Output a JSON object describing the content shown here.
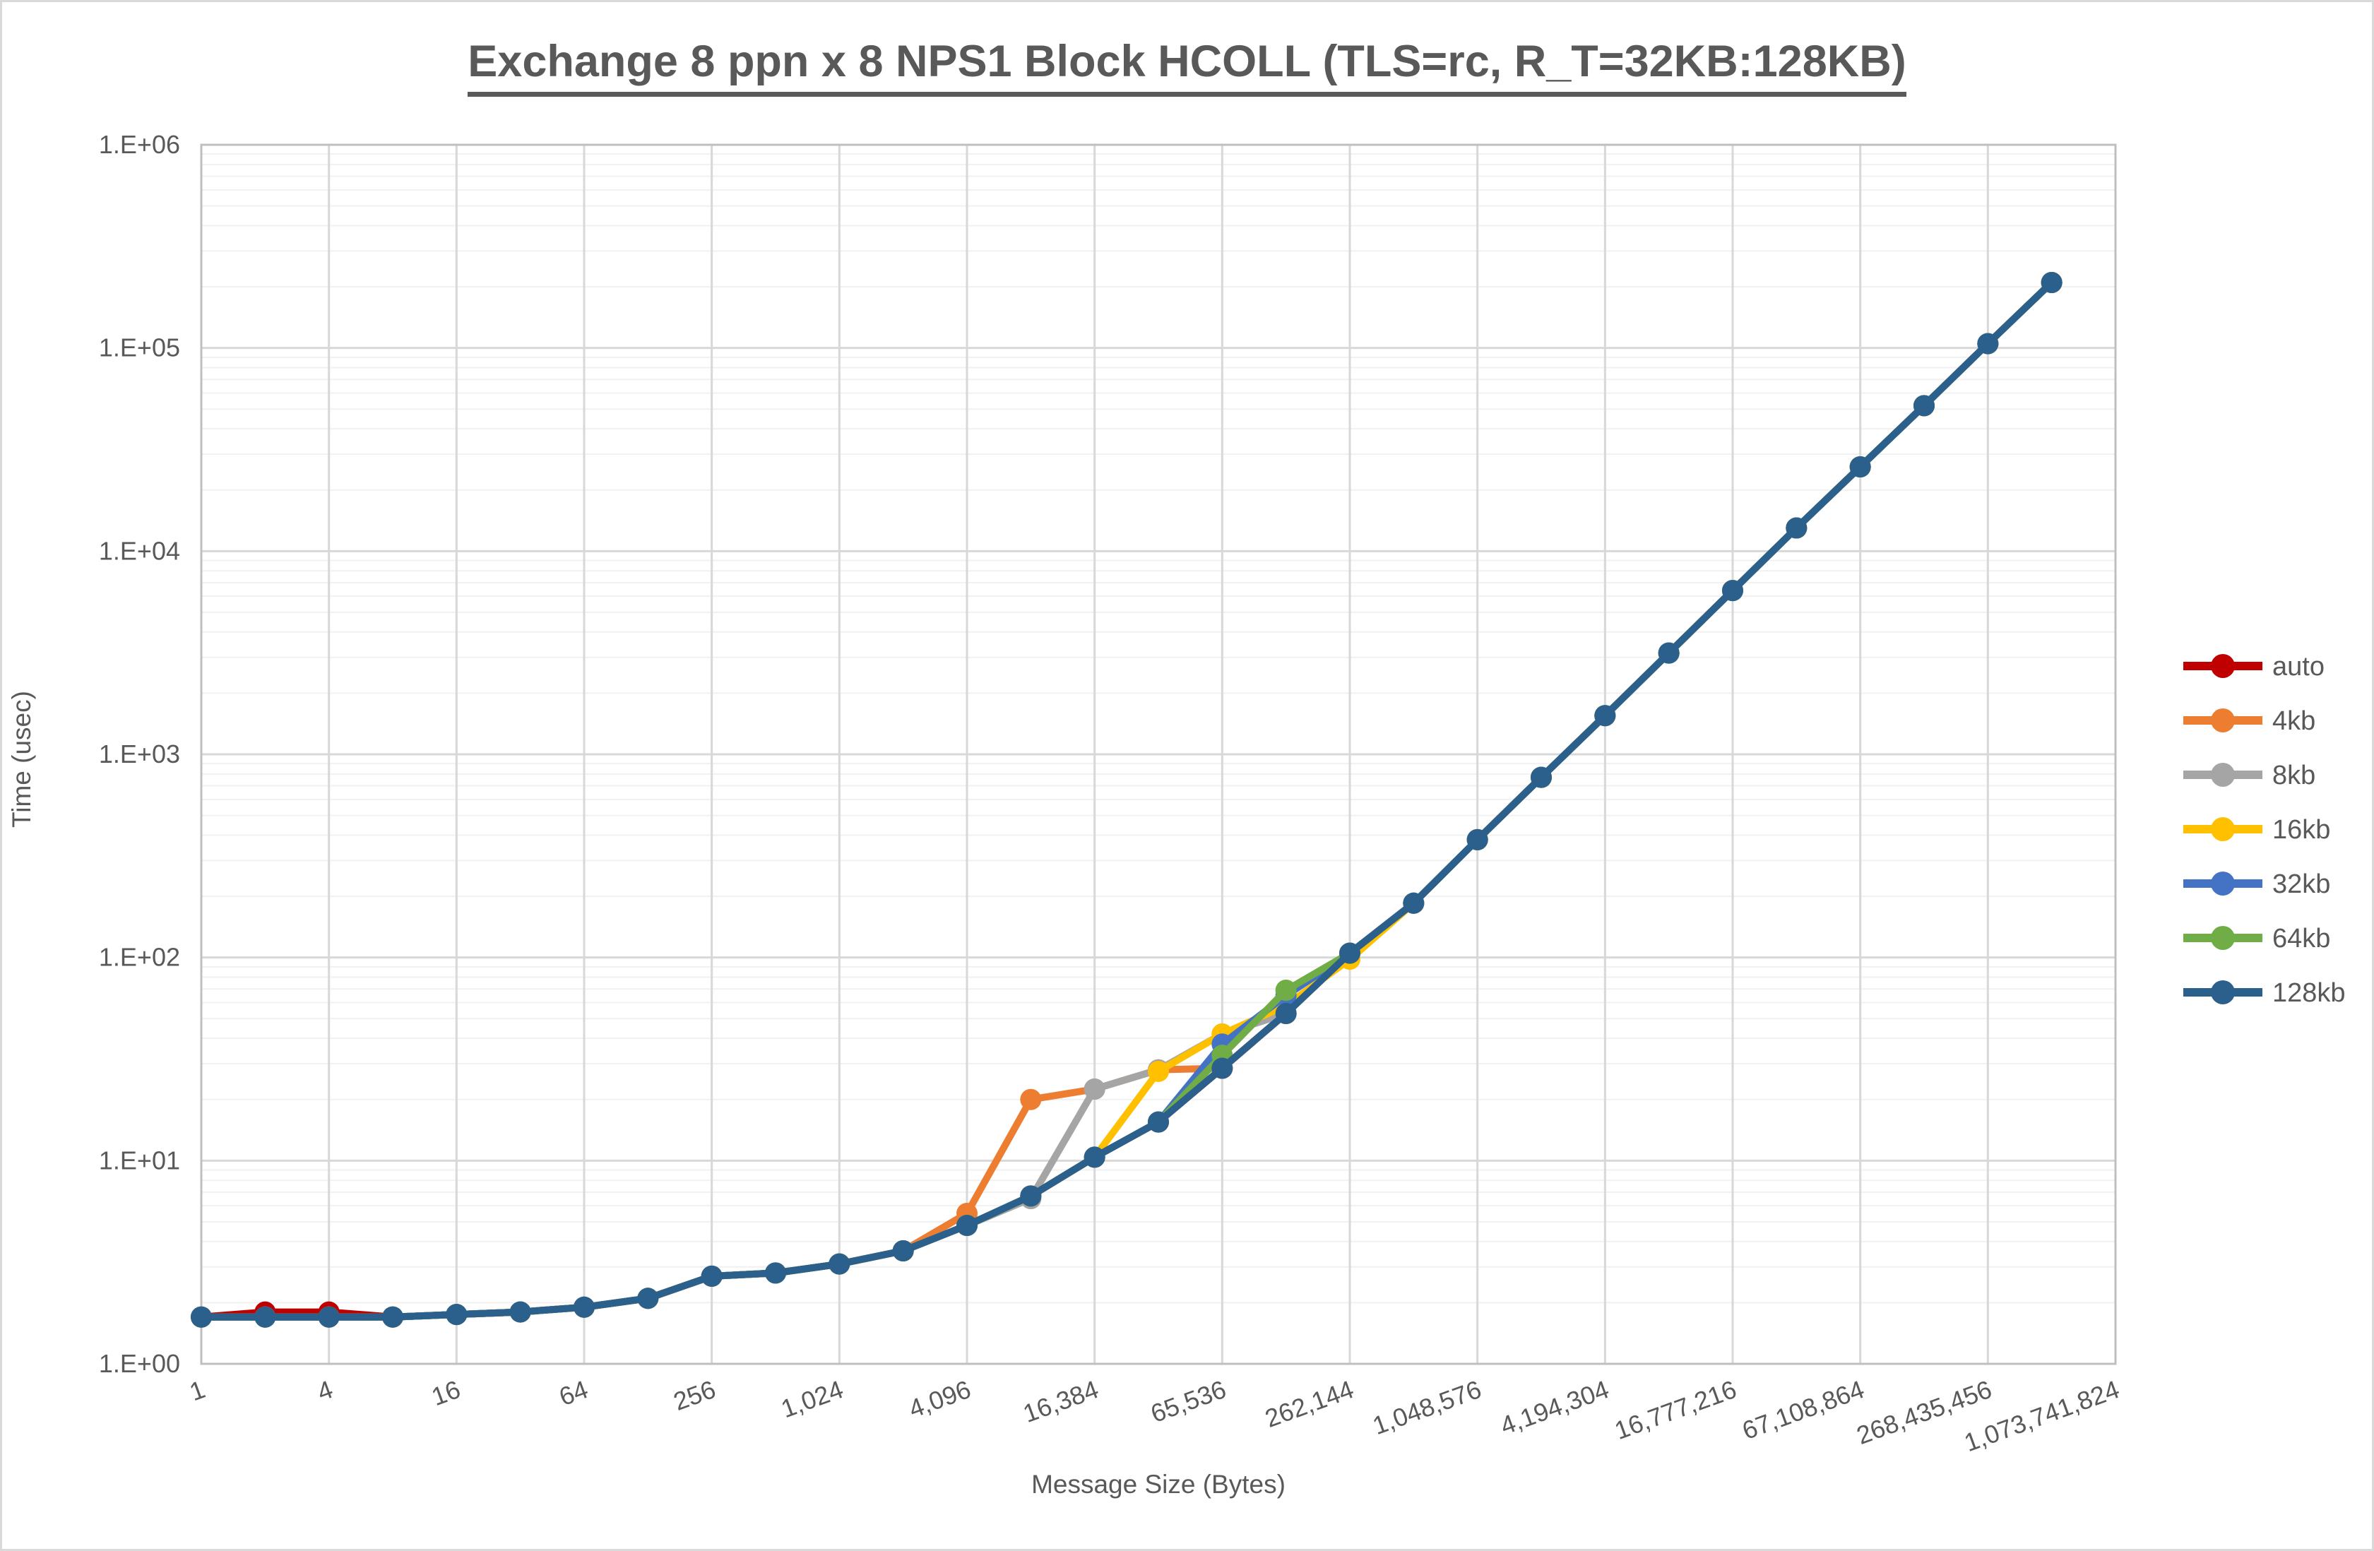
{
  "page": {
    "background_color": "#ffffff",
    "border_color": "#d9d9d9",
    "text_color": "#595959"
  },
  "chart_data": {
    "type": "line",
    "title": "Exchange 8 ppn x 8 NPS1 Block HCOLL (TLS=rc, R_T=32KB:128KB)",
    "xlabel": "Message Size (Bytes)",
    "ylabel": "Time (usec)",
    "x_scale": "log2_categories",
    "y_scale": "log10",
    "ylim": [
      1,
      1000000
    ],
    "grid": {
      "major": true,
      "minor_horizontal": true
    },
    "legend_position": "right",
    "y_tick_labels": [
      "1.E+00",
      "1.E+01",
      "1.E+02",
      "1.E+03",
      "1.E+04",
      "1.E+05",
      "1.E+06"
    ],
    "x_tick_labels": [
      "1",
      "4",
      "16",
      "64",
      "256",
      "1,024",
      "4,096",
      "16,384",
      "65,536",
      "262,144",
      "1,048,576",
      "4,194,304",
      "16,777,216",
      "67,108,864",
      "268,435,456",
      "1,073,741,824"
    ],
    "categories": [
      1,
      2,
      4,
      8,
      16,
      32,
      64,
      128,
      256,
      512,
      1024,
      2048,
      4096,
      8192,
      16384,
      32768,
      65536,
      131072,
      262144,
      524288,
      1048576,
      2097152,
      4194304,
      8388608,
      16777216,
      33554432,
      67108864,
      134217728,
      268435456,
      536870912,
      1073741824
    ],
    "series": [
      {
        "name": "auto",
        "color": "#C00000",
        "values": [
          1.7,
          1.8,
          1.8,
          1.7,
          1.75,
          1.8,
          1.9,
          2.1,
          2.7,
          2.8,
          3.1,
          3.6,
          4.8,
          6.7,
          10.4,
          15.5,
          28.5,
          53,
          105,
          185,
          380,
          770,
          1550,
          3150,
          6400,
          13000,
          26000,
          52000,
          105000,
          210000,
          null
        ]
      },
      {
        "name": "4kb",
        "color": "#ED7D31",
        "values": [
          1.7,
          1.7,
          1.7,
          1.7,
          1.75,
          1.8,
          1.9,
          2.1,
          2.7,
          2.8,
          3.1,
          3.6,
          5.5,
          20,
          22.5,
          28,
          28.5,
          53,
          105,
          185,
          380,
          770,
          1550,
          3150,
          6400,
          13000,
          26000,
          52000,
          105000,
          210000,
          null
        ]
      },
      {
        "name": "8kb",
        "color": "#A5A5A5",
        "values": [
          1.7,
          1.7,
          1.7,
          1.7,
          1.75,
          1.8,
          1.9,
          2.1,
          2.7,
          2.8,
          3.1,
          3.6,
          4.8,
          6.5,
          22.5,
          28,
          42,
          53,
          105,
          185,
          380,
          770,
          1550,
          3150,
          6400,
          13000,
          26000,
          52000,
          105000,
          210000,
          null
        ]
      },
      {
        "name": "16kb",
        "color": "#FFC000",
        "values": [
          1.7,
          1.7,
          1.7,
          1.7,
          1.75,
          1.8,
          1.9,
          2.1,
          2.7,
          2.8,
          3.1,
          3.6,
          4.8,
          6.7,
          10.4,
          27.5,
          42,
          58,
          98,
          185,
          380,
          770,
          1550,
          3150,
          6400,
          13000,
          26000,
          52000,
          105000,
          210000,
          null
        ]
      },
      {
        "name": "32kb",
        "color": "#4472C4",
        "values": [
          1.7,
          1.7,
          1.7,
          1.7,
          1.75,
          1.8,
          1.9,
          2.1,
          2.7,
          2.8,
          3.1,
          3.6,
          4.8,
          6.7,
          10.4,
          15.5,
          37.5,
          65,
          105,
          185,
          380,
          770,
          1550,
          3150,
          6400,
          13000,
          26000,
          52000,
          105000,
          210000,
          null
        ]
      },
      {
        "name": "64kb",
        "color": "#70AD47",
        "values": [
          1.7,
          1.7,
          1.7,
          1.7,
          1.75,
          1.8,
          1.9,
          2.1,
          2.7,
          2.8,
          3.1,
          3.6,
          4.8,
          6.7,
          10.4,
          15.5,
          33,
          69,
          105,
          185,
          380,
          770,
          1550,
          3150,
          6400,
          13000,
          26000,
          52000,
          105000,
          210000,
          null
        ]
      },
      {
        "name": "128kb",
        "color": "#2B5F8C",
        "values": [
          1.7,
          1.7,
          1.7,
          1.7,
          1.75,
          1.8,
          1.9,
          2.1,
          2.7,
          2.8,
          3.1,
          3.6,
          4.8,
          6.7,
          10.4,
          15.5,
          28.5,
          53,
          105,
          185,
          380,
          770,
          1550,
          3150,
          6400,
          13000,
          26000,
          52000,
          105000,
          210000,
          null
        ]
      }
    ]
  }
}
